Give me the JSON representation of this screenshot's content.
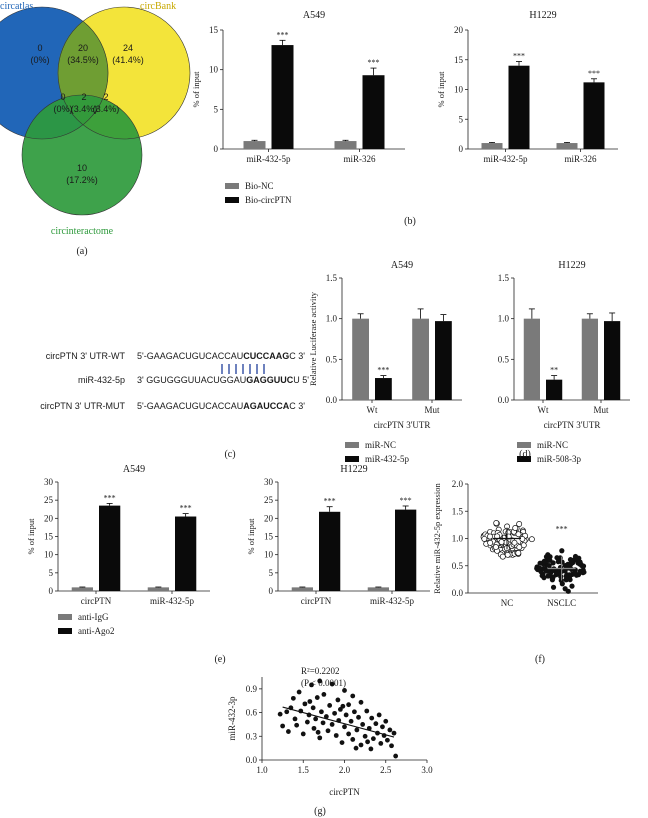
{
  "panels": {
    "a": "(a)",
    "b": "(b)",
    "c": "(c)",
    "d": "(d)",
    "e": "(e)",
    "f": "(f)",
    "g": "(g)"
  },
  "venn": {
    "sets": [
      {
        "name": "circatlas",
        "color": "#2166b8"
      },
      {
        "name": "circBank",
        "color": "#f3e334"
      },
      {
        "name": "circinteractome",
        "color": "#2e9a3c"
      }
    ],
    "regions": [
      {
        "count": "0",
        "pct": "(0%)"
      },
      {
        "count": "20",
        "pct": "(34.5%)"
      },
      {
        "count": "24",
        "pct": "(41.4%)"
      },
      {
        "count": "0",
        "pct": "(0%)"
      },
      {
        "count": "2",
        "pct": "(3.4%)"
      },
      {
        "count": "2",
        "pct": "(3.4%)"
      },
      {
        "count": "10",
        "pct": "(17.2%)"
      }
    ]
  },
  "colors": {
    "grey": "#7a7a7a",
    "black": "#0a0a0a",
    "dot": "#111111"
  },
  "sequences": {
    "rows": [
      {
        "label": "circPTN 3' UTR-WT",
        "pre": "5'-GAAGACUGUCACCAU",
        "bold": "CUCCAAG",
        "post": "C 3'"
      },
      {
        "label": "miR-432-5p",
        "pre": "3' GGUGGGUUACUGGAU",
        "bold": "GAGGUUC",
        "post": "U 5'"
      },
      {
        "label": "circPTN 3' UTR-MUT",
        "pre": "5'-GAAGACUGUCACCAU",
        "bold": "AGAUCCA",
        "post": "C 3'"
      }
    ]
  },
  "chart_data": [
    {
      "id": "b-A549",
      "type": "bar",
      "title": "A549",
      "ylabel": "% of input",
      "ylim": [
        0,
        15
      ],
      "yticks": [
        0,
        5,
        10,
        15
      ],
      "categories": [
        "miR-432-5p",
        "miR-326"
      ],
      "series": [
        {
          "name": "Bio-NC",
          "values": [
            1.0,
            1.0
          ],
          "err": [
            0.1,
            0.1
          ],
          "sig": [
            "",
            ""
          ]
        },
        {
          "name": "Bio-circPTN",
          "values": [
            13.1,
            9.3
          ],
          "err": [
            0.6,
            0.9
          ],
          "sig": [
            "***",
            "***"
          ]
        }
      ]
    },
    {
      "id": "b-H1229",
      "type": "bar",
      "title": "H1229",
      "ylabel": "% of input",
      "ylim": [
        0,
        20
      ],
      "yticks": [
        0,
        5,
        10,
        15,
        20
      ],
      "categories": [
        "miR-432-5p",
        "miR-326"
      ],
      "series": [
        {
          "name": "Bio-NC",
          "values": [
            1.0,
            1.0
          ],
          "err": [
            0.1,
            0.1
          ],
          "sig": [
            "",
            ""
          ]
        },
        {
          "name": "Bio-circPTN",
          "values": [
            14.0,
            11.2
          ],
          "err": [
            0.7,
            0.6
          ],
          "sig": [
            "***",
            "***"
          ]
        }
      ]
    },
    {
      "id": "d-A549",
      "type": "bar",
      "title": "A549",
      "ylabel": "Relative Luciferase activity",
      "xlabel": "circPTN 3'UTR",
      "ylim": [
        0,
        1.5
      ],
      "yticks": [
        0.0,
        0.5,
        1.0,
        1.5
      ],
      "categories": [
        "Wt",
        "Mut"
      ],
      "series": [
        {
          "name": "miR-NC",
          "values": [
            1.0,
            1.0
          ],
          "err": [
            0.06,
            0.12
          ],
          "sig": [
            "",
            ""
          ]
        },
        {
          "name": "miR-432-5p",
          "values": [
            0.27,
            0.97
          ],
          "err": [
            0.03,
            0.08
          ],
          "sig": [
            "***",
            ""
          ]
        }
      ]
    },
    {
      "id": "d-H1229",
      "type": "bar",
      "title": "H1229",
      "ylabel": "",
      "xlabel": "circPTN 3'UTR",
      "ylim": [
        0,
        1.5
      ],
      "yticks": [
        0.0,
        0.5,
        1.0,
        1.5
      ],
      "categories": [
        "Wt",
        "Mut"
      ],
      "series": [
        {
          "name": "miR-NC",
          "values": [
            1.0,
            1.0
          ],
          "err": [
            0.12,
            0.06
          ],
          "sig": [
            "",
            ""
          ]
        },
        {
          "name": "miR-508-3p",
          "values": [
            0.25,
            0.97
          ],
          "err": [
            0.05,
            0.1
          ],
          "sig": [
            "**",
            ""
          ]
        }
      ]
    },
    {
      "id": "e-A549",
      "type": "bar",
      "title": "A549",
      "ylabel": "% of input",
      "ylim": [
        0,
        30
      ],
      "yticks": [
        0,
        5,
        10,
        15,
        20,
        25,
        30
      ],
      "categories": [
        "circPTN",
        "miR-432-5p"
      ],
      "series": [
        {
          "name": "anti-IgG",
          "values": [
            1.0,
            1.0
          ],
          "err": [
            0.1,
            0.1
          ],
          "sig": [
            "",
            ""
          ]
        },
        {
          "name": "anti-Ago2",
          "values": [
            23.5,
            20.5
          ],
          "err": [
            0.6,
            0.8
          ],
          "sig": [
            "***",
            "***"
          ]
        }
      ]
    },
    {
      "id": "e-H1229",
      "type": "bar",
      "title": "H1229",
      "ylabel": "% of input",
      "ylim": [
        0,
        30
      ],
      "yticks": [
        0,
        5,
        10,
        15,
        20,
        25,
        30
      ],
      "categories": [
        "circPTN",
        "miR-432-5p"
      ],
      "series": [
        {
          "name": "anti-IgG",
          "values": [
            1.0,
            1.0
          ],
          "err": [
            0.1,
            0.1
          ],
          "sig": [
            "",
            ""
          ]
        },
        {
          "name": "anti-Ago2",
          "values": [
            21.8,
            22.4
          ],
          "err": [
            1.4,
            1.0
          ],
          "sig": [
            "***",
            "***"
          ]
        }
      ]
    },
    {
      "id": "f",
      "type": "scatter",
      "ylabel": "Relative miR-432-5p expression",
      "ylim": [
        0,
        2.0
      ],
      "yticks": [
        0.0,
        0.5,
        1.0,
        1.5,
        2.0
      ],
      "categories": [
        "NC",
        "NSCLC"
      ],
      "series": [
        {
          "name": "NC",
          "mean": 1.0,
          "sd": 0.2,
          "n": 90,
          "sig": ""
        },
        {
          "name": "NSCLC",
          "mean": 0.45,
          "sd": 0.22,
          "n": 90,
          "sig": "***"
        }
      ]
    },
    {
      "id": "g",
      "type": "scatter",
      "xlabel": "circPTN",
      "ylabel": "miR-432-3p",
      "xlim": [
        1.0,
        3.0
      ],
      "ylim": [
        0.0,
        1.05
      ],
      "xticks": [
        1.0,
        1.5,
        2.0,
        2.5,
        3.0
      ],
      "yticks": [
        0.0,
        0.3,
        0.6,
        0.9
      ],
      "annotation_r2": "R²=0.2202",
      "annotation_p": "(P < 0.0001)",
      "fit": {
        "x": [
          1.25,
          2.6
        ],
        "y": [
          0.67,
          0.29
        ]
      },
      "points": [
        [
          1.22,
          0.58
        ],
        [
          1.25,
          0.43
        ],
        [
          1.3,
          0.61
        ],
        [
          1.32,
          0.36
        ],
        [
          1.35,
          0.66
        ],
        [
          1.38,
          0.78
        ],
        [
          1.4,
          0.52
        ],
        [
          1.42,
          0.44
        ],
        [
          1.45,
          0.86
        ],
        [
          1.47,
          0.62
        ],
        [
          1.5,
          0.33
        ],
        [
          1.52,
          0.71
        ],
        [
          1.55,
          0.48
        ],
        [
          1.57,
          0.57
        ],
        [
          1.6,
          0.95
        ],
        [
          1.62,
          0.66
        ],
        [
          1.63,
          0.4
        ],
        [
          1.65,
          0.52
        ],
        [
          1.67,
          0.79
        ],
        [
          1.7,
          0.28
        ],
        [
          1.7,
          1.0
        ],
        [
          1.72,
          0.61
        ],
        [
          1.74,
          0.47
        ],
        [
          1.75,
          0.83
        ],
        [
          1.78,
          0.55
        ],
        [
          1.8,
          0.37
        ],
        [
          1.82,
          0.69
        ],
        [
          1.85,
          0.96
        ],
        [
          1.85,
          0.45
        ],
        [
          1.88,
          0.59
        ],
        [
          1.9,
          0.31
        ],
        [
          1.92,
          0.76
        ],
        [
          1.93,
          0.5
        ],
        [
          1.95,
          0.64
        ],
        [
          1.97,
          0.22
        ],
        [
          2.0,
          0.88
        ],
        [
          2.0,
          0.42
        ],
        [
          2.02,
          0.57
        ],
        [
          2.05,
          0.33
        ],
        [
          2.05,
          0.7
        ],
        [
          2.08,
          0.49
        ],
        [
          2.1,
          0.81
        ],
        [
          2.1,
          0.26
        ],
        [
          2.12,
          0.61
        ],
        [
          2.15,
          0.38
        ],
        [
          2.17,
          0.54
        ],
        [
          2.2,
          0.19
        ],
        [
          2.2,
          0.73
        ],
        [
          2.22,
          0.45
        ],
        [
          2.25,
          0.3
        ],
        [
          2.27,
          0.62
        ],
        [
          2.3,
          0.4
        ],
        [
          2.32,
          0.14
        ],
        [
          2.33,
          0.53
        ],
        [
          2.35,
          0.27
        ],
        [
          2.38,
          0.46
        ],
        [
          2.4,
          0.34
        ],
        [
          2.42,
          0.57
        ],
        [
          2.44,
          0.21
        ],
        [
          2.46,
          0.42
        ],
        [
          2.48,
          0.31
        ],
        [
          2.5,
          0.49
        ],
        [
          2.52,
          0.25
        ],
        [
          2.55,
          0.38
        ],
        [
          2.57,
          0.18
        ],
        [
          2.6,
          0.34
        ],
        [
          2.62,
          0.05
        ],
        [
          1.58,
          0.74
        ],
        [
          1.68,
          0.35
        ],
        [
          1.98,
          0.68
        ],
        [
          2.28,
          0.23
        ],
        [
          2.14,
          0.15
        ]
      ]
    }
  ]
}
